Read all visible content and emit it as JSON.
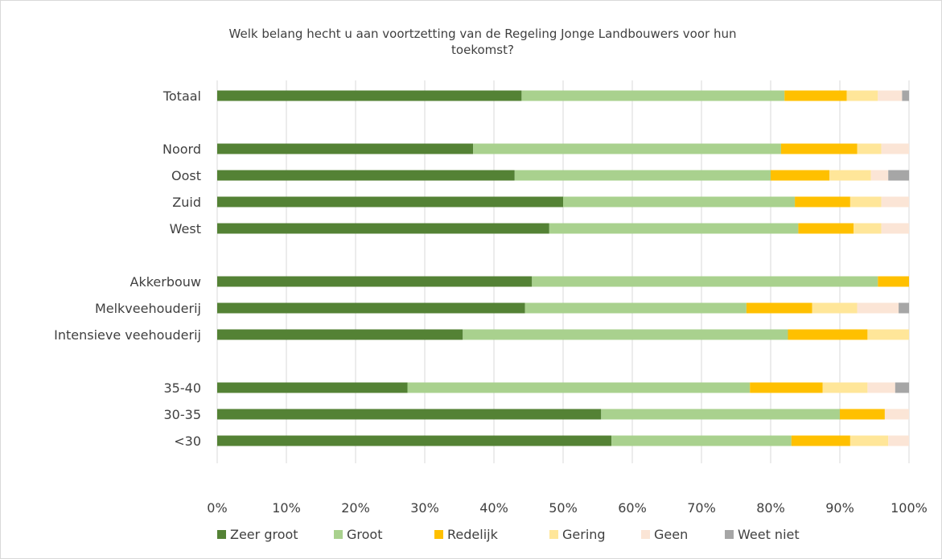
{
  "chart_data": {
    "type": "bar",
    "orientation": "horizontal",
    "stacked": "percent",
    "title": [
      "Welk belang hecht u aan voortzetting van de Regeling Jonge Landbouwers voor hun",
      "toekomst?"
    ],
    "categories": [
      "Totaal",
      "",
      "Noord",
      "Oost",
      "Zuid",
      "West",
      "",
      "Akkerbouw",
      "Melkveehouderij",
      "Intensieve veehouderij",
      "",
      "35-40",
      "30-35",
      "<30"
    ],
    "series": [
      {
        "name": "Zeer groot",
        "color": "#548235",
        "values": [
          44,
          null,
          37,
          43,
          50,
          48,
          null,
          45.5,
          44.5,
          35.5,
          null,
          27.5,
          55.5,
          57
        ]
      },
      {
        "name": "Groot",
        "color": "#a9d18e",
        "values": [
          38,
          null,
          44.5,
          37,
          33.5,
          36,
          null,
          50,
          32,
          47,
          null,
          49.5,
          34.5,
          26
        ]
      },
      {
        "name": "Redelijk",
        "color": "#ffc000",
        "values": [
          9,
          null,
          11,
          8.5,
          8,
          8,
          null,
          4.5,
          9.5,
          11.5,
          null,
          10.5,
          6.5,
          8.5
        ]
      },
      {
        "name": "Gering",
        "color": "#ffe699",
        "values": [
          4.5,
          null,
          3.5,
          6,
          4.5,
          4,
          null,
          0,
          6.5,
          6,
          null,
          6.5,
          0,
          5.5
        ]
      },
      {
        "name": "Geen",
        "color": "#fbe5d6",
        "values": [
          3.5,
          null,
          4,
          2.5,
          4,
          4,
          null,
          0,
          6,
          0,
          null,
          4,
          3.5,
          3
        ]
      },
      {
        "name": "Weet niet",
        "color": "#a6a6a6",
        "values": [
          1,
          null,
          0,
          3,
          0,
          0,
          null,
          0,
          1.5,
          0,
          null,
          2,
          0,
          0
        ]
      }
    ],
    "xlim": [
      0,
      100
    ],
    "x_ticks": [
      "0%",
      "10%",
      "20%",
      "30%",
      "40%",
      "50%",
      "60%",
      "70%",
      "80%",
      "90%",
      "100%"
    ],
    "grid": "vertical",
    "legend_position": "bottom",
    "gridline_color": "#d9d9d9"
  }
}
